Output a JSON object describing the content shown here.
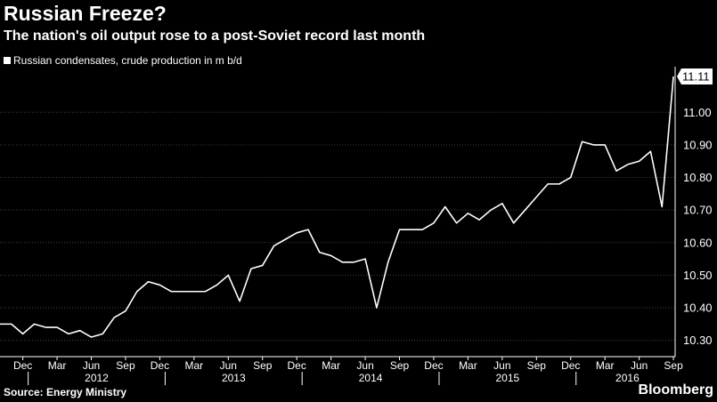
{
  "title": "Russian Freeze?",
  "subtitle": "The nation's oil output rose to a post-Soviet record last month",
  "source": "Source: Energy Ministry",
  "brand": "Bloomberg",
  "colors": {
    "background": "#000000",
    "line": "#ffffff",
    "grid": "#444444",
    "text": "#ffffff"
  },
  "chart_data": {
    "type": "line",
    "legend_position": "top-left",
    "grid": true,
    "xlabel": "",
    "ylabel": "",
    "ylim": [
      10.25,
      11.14
    ],
    "y_ticks": [
      10.3,
      10.4,
      10.5,
      10.6,
      10.7,
      10.8,
      10.9,
      11.0
    ],
    "y_tick_labels": [
      "10.30",
      "10.40",
      "10.50",
      "10.60",
      "10.70",
      "10.80",
      "10.90",
      "11.00"
    ],
    "last_value_label": "11.11",
    "x_ticks": [
      "2011-12",
      "2012-03",
      "2012-06",
      "2012-09",
      "2012-12",
      "2013-03",
      "2013-06",
      "2013-09",
      "2013-12",
      "2014-03",
      "2014-06",
      "2014-09",
      "2014-12",
      "2015-03",
      "2015-06",
      "2015-09",
      "2015-12",
      "2016-03",
      "2016-06",
      "2016-09"
    ],
    "x_tick_labels": [
      "Dec",
      "Mar",
      "Jun",
      "Sep",
      "Dec",
      "Mar",
      "Jun",
      "Sep",
      "Dec",
      "Mar",
      "Jun",
      "Sep",
      "Dec",
      "Mar",
      "Jun",
      "Sep",
      "Dec",
      "Mar",
      "Jun",
      "Sep"
    ],
    "year_labels": [
      {
        "label": "2012",
        "from": "2011-12",
        "to": "2012-12"
      },
      {
        "label": "2013",
        "from": "2012-12",
        "to": "2013-12"
      },
      {
        "label": "2014",
        "from": "2013-12",
        "to": "2014-12"
      },
      {
        "label": "2015",
        "from": "2014-12",
        "to": "2015-12"
      },
      {
        "label": "2016",
        "from": "2015-12",
        "to": "2016-09"
      }
    ],
    "series": [
      {
        "name": "Russian condensates, crude production in m b/d",
        "x": [
          "2011-10",
          "2011-11",
          "2011-12",
          "2012-01",
          "2012-02",
          "2012-03",
          "2012-04",
          "2012-05",
          "2012-06",
          "2012-07",
          "2012-08",
          "2012-09",
          "2012-10",
          "2012-11",
          "2012-12",
          "2013-01",
          "2013-02",
          "2013-03",
          "2013-04",
          "2013-05",
          "2013-06",
          "2013-07",
          "2013-08",
          "2013-09",
          "2013-10",
          "2013-11",
          "2013-12",
          "2014-01",
          "2014-02",
          "2014-03",
          "2014-04",
          "2014-05",
          "2014-06",
          "2014-07",
          "2014-08",
          "2014-09",
          "2014-10",
          "2014-11",
          "2014-12",
          "2015-01",
          "2015-02",
          "2015-03",
          "2015-04",
          "2015-05",
          "2015-06",
          "2015-07",
          "2015-08",
          "2015-09",
          "2015-10",
          "2015-11",
          "2015-12",
          "2016-01",
          "2016-02",
          "2016-03",
          "2016-04",
          "2016-05",
          "2016-06",
          "2016-07",
          "2016-08",
          "2016-09"
        ],
        "values": [
          10.35,
          10.35,
          10.32,
          10.35,
          10.34,
          10.34,
          10.32,
          10.33,
          10.31,
          10.32,
          10.37,
          10.39,
          10.45,
          10.48,
          10.47,
          10.45,
          10.45,
          10.45,
          10.45,
          10.47,
          10.5,
          10.42,
          10.52,
          10.53,
          10.59,
          10.61,
          10.63,
          10.64,
          10.57,
          10.56,
          10.54,
          10.54,
          10.55,
          10.4,
          10.54,
          10.64,
          10.64,
          10.64,
          10.66,
          10.71,
          10.66,
          10.69,
          10.67,
          10.7,
          10.72,
          10.66,
          10.7,
          10.74,
          10.78,
          10.78,
          10.8,
          10.91,
          10.9,
          10.9,
          10.82,
          10.84,
          10.85,
          10.88,
          10.71,
          11.11
        ]
      }
    ]
  }
}
